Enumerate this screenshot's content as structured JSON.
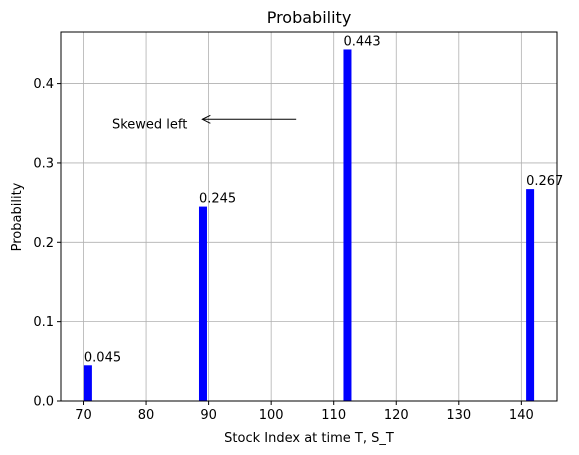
{
  "chart_data": {
    "type": "bar",
    "title": "Probability",
    "xlabel": "Stock Index at time T, S_T",
    "ylabel": "Probability",
    "x": [
      70.7,
      89.1,
      112.2,
      141.4
    ],
    "values": [
      0.045,
      0.245,
      0.443,
      0.267
    ],
    "data_labels": [
      "0.045",
      "0.245",
      "0.443",
      "0.267"
    ],
    "bar_color": "#0000ff",
    "xlim": [
      66.4,
      145.7
    ],
    "ylim": [
      0.0,
      0.465
    ],
    "xticks": [
      70,
      80,
      90,
      100,
      110,
      120,
      130,
      140
    ],
    "yticks": [
      0.0,
      0.1,
      0.2,
      0.3,
      0.4
    ],
    "ytick_labels": [
      "0.0",
      "0.1",
      "0.2",
      "0.3",
      "0.4"
    ],
    "grid": true,
    "annotation": {
      "text": "Skewed left",
      "arrow_from": [
        104,
        0.355
      ],
      "arrow_to": [
        89,
        0.355
      ]
    }
  }
}
